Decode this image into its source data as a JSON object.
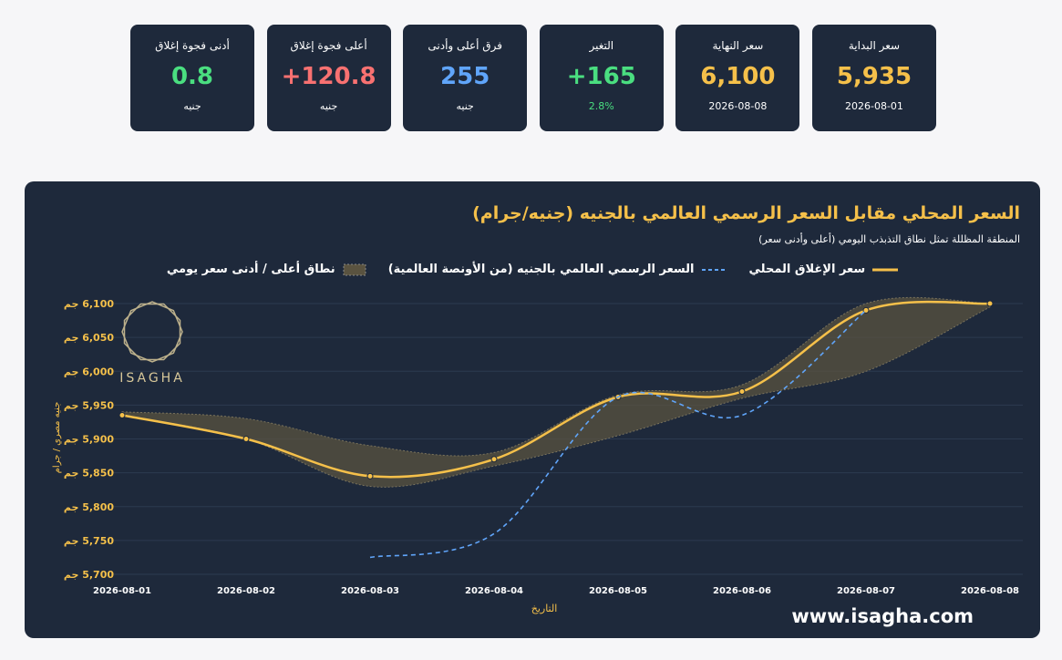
{
  "cards": [
    {
      "label": "سعر البداية",
      "value": "5,935",
      "sub": "2026-08-01",
      "color": "#f5c04a",
      "sub_color": "#ffffff"
    },
    {
      "label": "سعر النهاية",
      "value": "6,100",
      "sub": "2026-08-08",
      "color": "#f5c04a",
      "sub_color": "#ffffff"
    },
    {
      "label": "التغير",
      "value": "165+",
      "sub": "2.8%",
      "color": "#4ade80",
      "sub_color": "#4ade80"
    },
    {
      "label": "فرق أعلى وأدنى",
      "value": "255",
      "sub": "جنيه",
      "color": "#60a5fa",
      "sub_color": "#ffffff"
    },
    {
      "label": "أعلى فجوة إغلاق",
      "value": "120.8+",
      "sub": "جنيه",
      "color": "#f87171",
      "sub_color": "#ffffff"
    },
    {
      "label": "أدنى فجوة إغلاق",
      "value": "0.8",
      "sub": "جنيه",
      "color": "#4ade80",
      "sub_color": "#ffffff"
    }
  ],
  "chart_data": {
    "type": "line",
    "title": "السعر المحلي مقابل السعر الرسمي العالمي بالجنيه (جنيه/جرام)",
    "subtitle": "المنطقة المظللة تمثل نطاق التذبذب اليومي (أعلى وأدنى سعر)",
    "x_label": "التاريخ",
    "y_label": "جنيه مصري / جرام",
    "categories": [
      "2026-08-01",
      "2026-08-02",
      "2026-08-03",
      "2026-08-04",
      "2026-08-05",
      "2026-08-06",
      "2026-08-07",
      "2026-08-08"
    ],
    "series": [
      {
        "name": "سعر الإغلاق المحلي",
        "color": "#f5c04a",
        "values": [
          5935,
          5900,
          5845,
          5870,
          5962,
          5970,
          6090,
          6100
        ]
      },
      {
        "name": "السعر الرسمي العالمي بالجنيه (من الأونصة العالمية)",
        "color": "#60a5fa",
        "dashed": true,
        "values": [
          null,
          null,
          5725,
          5760,
          5962,
          5935,
          6090,
          null
        ]
      }
    ],
    "band": {
      "name": "نطاق أعلى / أدنى سعر يومي",
      "color": "#5a5340",
      "high": [
        5940,
        5930,
        5890,
        5880,
        5965,
        5980,
        6100,
        6100
      ],
      "low": [
        5935,
        5900,
        5830,
        5860,
        5905,
        5960,
        6000,
        6095
      ]
    },
    "ylim": [
      5700,
      6100
    ],
    "yticks": [
      {
        "value": 5700,
        "label": "5,700 جم"
      },
      {
        "value": 5750,
        "label": "5,750 جم"
      },
      {
        "value": 5800,
        "label": "5,800 جم"
      },
      {
        "value": 5850,
        "label": "5,850 جم"
      },
      {
        "value": 5900,
        "label": "5,900 جم"
      },
      {
        "value": 5950,
        "label": "5,950 جم"
      },
      {
        "value": 6000,
        "label": "6,000 جم"
      },
      {
        "value": 6050,
        "label": "6,050 جم"
      },
      {
        "value": 6100,
        "label": "6,100 جم"
      }
    ],
    "grid": true,
    "watermark": "ISAGHA",
    "website": "www.isagha.com"
  }
}
